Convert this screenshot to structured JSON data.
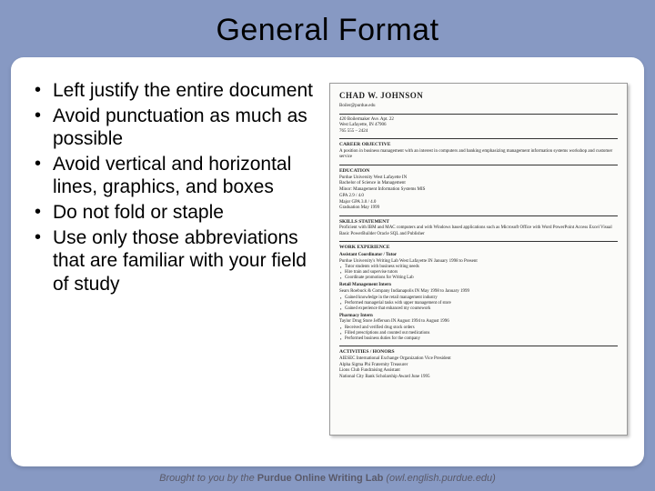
{
  "colors": {
    "page_background": "#8799c3",
    "card_background": "#ffffff",
    "text": "#000000",
    "footer_text": "#5a5a6a",
    "resume_background": "#fbfbf9",
    "resume_border": "#999999"
  },
  "typography": {
    "title_font": "Impact",
    "title_size_pt": 26,
    "body_font": "Arial",
    "body_size_pt": 16,
    "footer_size_pt": 8
  },
  "title": "General Format",
  "bullets": [
    "Left justify the entire document",
    "Avoid punctuation as much as possible",
    "Avoid vertical and horizontal lines, graphics, and boxes",
    "Do not fold or staple",
    "Use only those abbreviations that are familiar with your field of study"
  ],
  "resume": {
    "name": "CHAD W. JOHNSON",
    "email": "Boiler@purdue.edu",
    "address1": "420 Boilermaker Ave. Apt. 22",
    "address2": "West Lafayette, IN 47906",
    "phone": "765 555 – 2424",
    "objective_h": "CAREER OBJECTIVE",
    "objective": "A position in business management with an interest in computers and banking emphasizing management information systems workshop and customer service",
    "education_h": "EDUCATION",
    "edu1": "Purdue University West Lafayette IN",
    "edu2": "Bachelor of Science in Management",
    "edu3": "Minor: Management Information Systems MIS",
    "gpa": "GPA 2.9 / 4.0",
    "mgpa": "Major GPA 3.0 / 4.0",
    "grad": "Graduation May 1999",
    "skills_h": "SKILLS STATEMENT",
    "skills": "Proficient with IBM and MAC computers and with Windows based applications such as Microsoft Office with Word PowerPoint Access Excel Visual Basic PowerBuilder Oracle SQL and Publisher",
    "work_h": "WORK EXPERIENCE",
    "job1_t": "Assistant Coordinator / Tutor",
    "job1_c": "Purdue University's Writing Lab West Lafayette IN January 1998 to Present",
    "job1_b1": "Tutor students with business writing needs",
    "job1_b2": "Hire train and supervise tutors",
    "job1_b3": "Coordinate promotions for Writing Lab",
    "job2_t": "Retail Management Intern",
    "job2_c": "Sears Roebuck & Company Indianapolis IN May 1998 to January 1999",
    "job2_b1": "Gained knowledge in the retail management industry",
    "job2_b2": "Performed managerial tasks with upper management of store",
    "job2_b3": "Gained experience that enhanced my coursework",
    "job3_t": "Pharmacy Intern",
    "job3_c": "Taylor Drug Store Jefferson IN August 1994 to August 1996",
    "job3_b1": "Received and verified drug stock orders",
    "job3_b2": "Filled prescriptions and counted out medications",
    "job3_b3": "Performed business duties for the company",
    "act_h": "ACTIVITIES / HONORS",
    "act1": "AIESEC International Exchange Organization Vice President",
    "act2": "Alpha Sigma Phi Fraternity Treasurer",
    "act3": "Lions Club Fundraising Assistant",
    "act4": "National City Bank Scholarship Award June 1995"
  },
  "footer": {
    "pre": "Brought to you by the ",
    "lab": "Purdue Online Writing Lab",
    "url": " (owl.english.purdue.edu)"
  }
}
